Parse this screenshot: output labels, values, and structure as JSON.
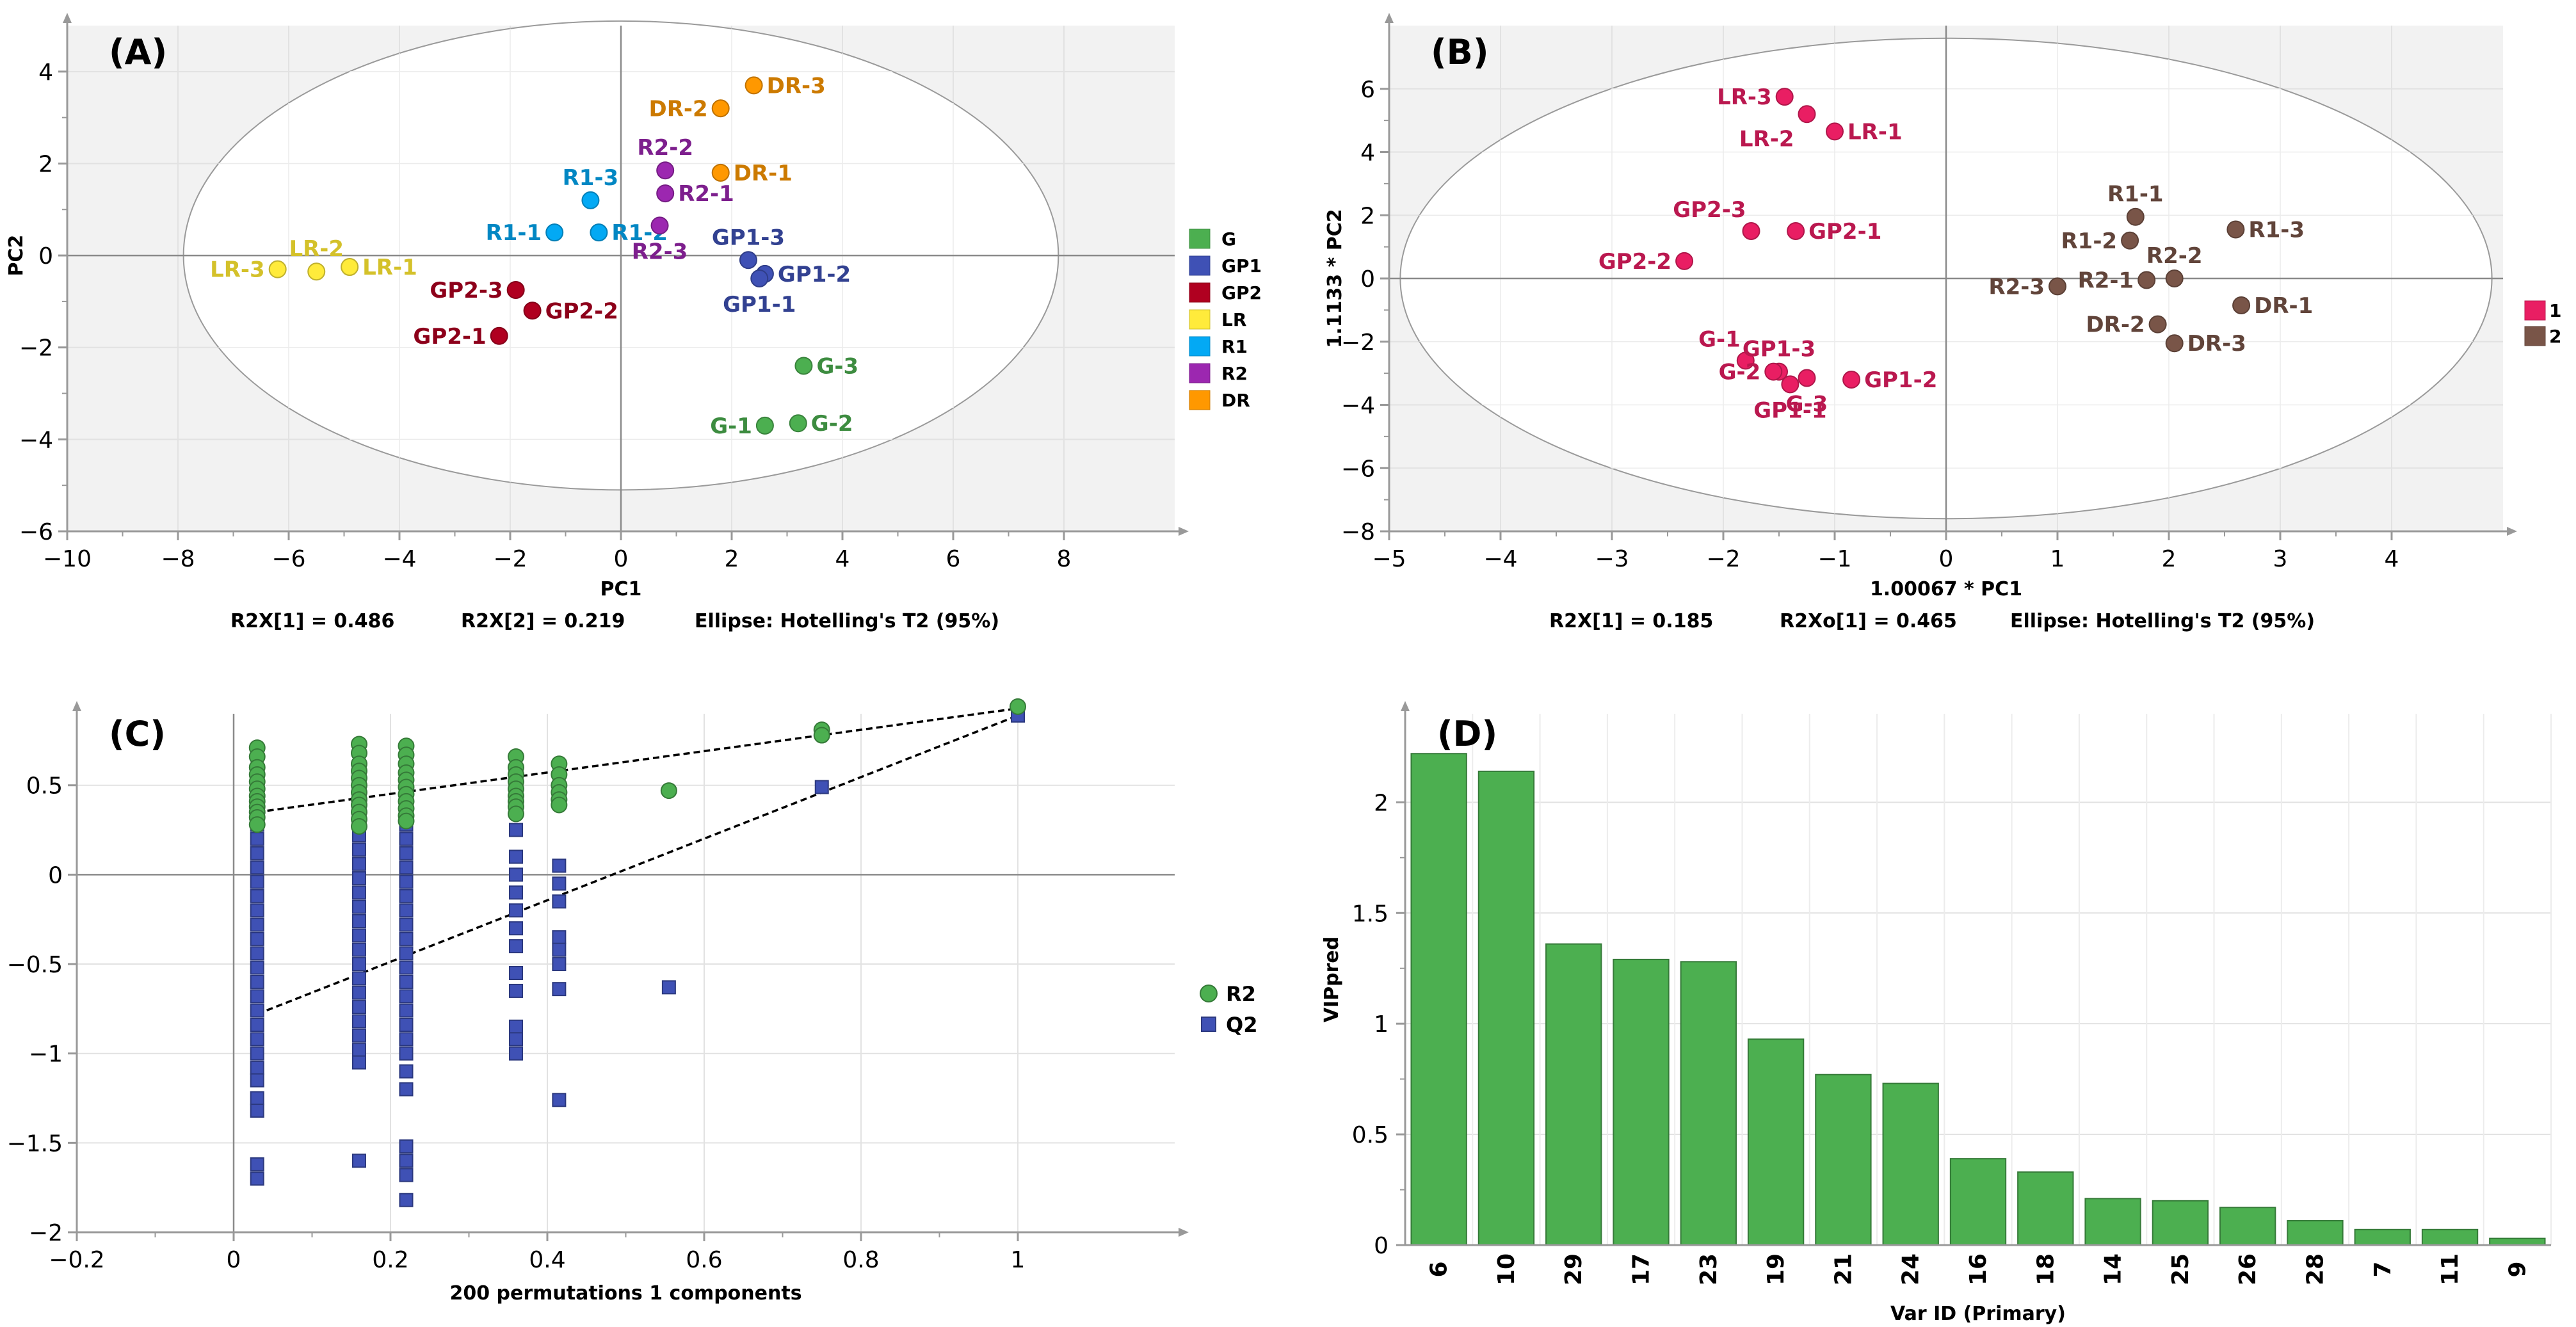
{
  "chart_data": [
    {
      "panel": "(A)",
      "type": "scatter",
      "xlabel": "PC1",
      "ylabel": "PC2",
      "xlim": [
        -10,
        10
      ],
      "ylim": [
        -6,
        5
      ],
      "xticks": [
        -10,
        -8,
        -6,
        -4,
        -2,
        0,
        2,
        4,
        6,
        8
      ],
      "yticks": [
        -6,
        -4,
        -2,
        0,
        2,
        4
      ],
      "ellipse": {
        "rx": 7.9,
        "ry": 5.1
      },
      "footer": [
        "R2X[1] = 0.486",
        "R2X[2] = 0.219",
        "Ellipse: Hotelling's T2 (95%)"
      ],
      "legend": [
        {
          "name": "G",
          "color": "#4caf50"
        },
        {
          "name": "GP1",
          "color": "#3f51b5"
        },
        {
          "name": "GP2",
          "color": "#b00020"
        },
        {
          "name": "LR",
          "color": "#ffeb3b"
        },
        {
          "name": "R1",
          "color": "#03a9f4"
        },
        {
          "name": "R2",
          "color": "#9c27b0"
        },
        {
          "name": "DR",
          "color": "#ff9800"
        }
      ],
      "points": [
        {
          "label": "LR-3",
          "x": -6.2,
          "y": -0.3,
          "group": "LR",
          "pos": "left"
        },
        {
          "label": "LR-2",
          "x": -5.5,
          "y": -0.35,
          "group": "LR",
          "pos": "above"
        },
        {
          "label": "LR-1",
          "x": -4.9,
          "y": -0.25,
          "group": "LR",
          "pos": "right"
        },
        {
          "label": "R1-1",
          "x": -1.2,
          "y": 0.5,
          "group": "R1",
          "pos": "left"
        },
        {
          "label": "R1-2",
          "x": -0.4,
          "y": 0.5,
          "group": "R1",
          "pos": "rightlow"
        },
        {
          "label": "R1-3",
          "x": -0.55,
          "y": 1.2,
          "group": "R1",
          "pos": "above"
        },
        {
          "label": "R2-2",
          "x": 0.8,
          "y": 1.85,
          "group": "R2",
          "pos": "above"
        },
        {
          "label": "R2-1",
          "x": 0.8,
          "y": 1.35,
          "group": "R2",
          "pos": "right"
        },
        {
          "label": "R2-3",
          "x": 0.7,
          "y": 0.65,
          "group": "R2",
          "pos": "below"
        },
        {
          "label": "DR-2",
          "x": 1.8,
          "y": 3.2,
          "group": "DR",
          "pos": "left"
        },
        {
          "label": "DR-3",
          "x": 2.4,
          "y": 3.7,
          "group": "DR",
          "pos": "right"
        },
        {
          "label": "DR-1",
          "x": 1.8,
          "y": 1.8,
          "group": "DR",
          "pos": "right"
        },
        {
          "label": "GP2-3",
          "x": -1.9,
          "y": -0.75,
          "group": "GP2",
          "pos": "left"
        },
        {
          "label": "GP2-2",
          "x": -1.6,
          "y": -1.2,
          "group": "GP2",
          "pos": "right"
        },
        {
          "label": "GP2-1",
          "x": -2.2,
          "y": -1.75,
          "group": "GP2",
          "pos": "left"
        },
        {
          "label": "GP1-3",
          "x": 2.3,
          "y": -0.1,
          "group": "GP1",
          "pos": "above"
        },
        {
          "label": "GP1-2",
          "x": 2.6,
          "y": -0.4,
          "group": "GP1",
          "pos": "right"
        },
        {
          "label": "GP1-1",
          "x": 2.5,
          "y": -0.5,
          "group": "GP1",
          "pos": "below"
        },
        {
          "label": "G-3",
          "x": 3.3,
          "y": -2.4,
          "group": "G",
          "pos": "right"
        },
        {
          "label": "G-1",
          "x": 2.6,
          "y": -3.7,
          "group": "G",
          "pos": "left"
        },
        {
          "label": "G-2",
          "x": 3.2,
          "y": -3.65,
          "group": "G",
          "pos": "right"
        }
      ]
    },
    {
      "panel": "(B)",
      "type": "scatter",
      "xlabel": "1.00067 * PC1",
      "ylabel": "1.1133 * PC2",
      "xlim": [
        -5,
        5
      ],
      "ylim": [
        -8,
        8
      ],
      "xticks": [
        -5,
        -4,
        -3,
        -2,
        -1,
        0,
        1,
        2,
        3,
        4
      ],
      "yticks": [
        -8,
        -6,
        -4,
        -2,
        0,
        2,
        4,
        6
      ],
      "ellipse": {
        "rx": 4.9,
        "ry": 7.6
      },
      "footer": [
        "R2X[1] = 0.185",
        "R2Xo[1] = 0.465",
        "Ellipse: Hotelling's T2 (95%)"
      ],
      "legend": [
        {
          "name": "1",
          "color": "#e91e63"
        },
        {
          "name": "2",
          "color": "#795548"
        }
      ],
      "points": [
        {
          "label": "LR-3",
          "x": -1.45,
          "y": 5.75,
          "group": "1",
          "pos": "left"
        },
        {
          "label": "LR-2",
          "x": -1.25,
          "y": 5.2,
          "group": "1",
          "pos": "belowleft"
        },
        {
          "label": "LR-1",
          "x": -1.0,
          "y": 4.65,
          "group": "1",
          "pos": "right"
        },
        {
          "label": "GP2-3",
          "x": -1.75,
          "y": 1.5,
          "group": "1",
          "pos": "aboveleft"
        },
        {
          "label": "GP2-1",
          "x": -1.35,
          "y": 1.5,
          "group": "1",
          "pos": "right"
        },
        {
          "label": "GP2-2",
          "x": -2.35,
          "y": 0.55,
          "group": "1",
          "pos": "left"
        },
        {
          "label": "G-1",
          "x": -1.8,
          "y": -2.6,
          "group": "1",
          "pos": "aboveleft"
        },
        {
          "label": "GP1-3",
          "x": -1.5,
          "y": -2.95,
          "group": "1",
          "pos": "above"
        },
        {
          "label": "G-2",
          "x": -1.55,
          "y": -2.95,
          "group": "1",
          "pos": "left"
        },
        {
          "label": "GP1-1",
          "x": -1.4,
          "y": -3.35,
          "group": "1",
          "pos": "below"
        },
        {
          "label": "G-3",
          "x": -1.25,
          "y": -3.15,
          "group": "1",
          "pos": "below"
        },
        {
          "label": "GP1-2",
          "x": -0.85,
          "y": -3.2,
          "group": "1",
          "pos": "right"
        },
        {
          "label": "R1-1",
          "x": 1.7,
          "y": 1.95,
          "group": "2",
          "pos": "above"
        },
        {
          "label": "R1-3",
          "x": 2.6,
          "y": 1.55,
          "group": "2",
          "pos": "right"
        },
        {
          "label": "R1-2",
          "x": 1.65,
          "y": 1.2,
          "group": "2",
          "pos": "left"
        },
        {
          "label": "R2-2",
          "x": 2.05,
          "y": 0.0,
          "group": "2",
          "pos": "above"
        },
        {
          "label": "R2-1",
          "x": 1.8,
          "y": -0.05,
          "group": "2",
          "pos": "left"
        },
        {
          "label": "R2-3",
          "x": 1.0,
          "y": -0.25,
          "group": "2",
          "pos": "left"
        },
        {
          "label": "DR-1",
          "x": 2.65,
          "y": -0.85,
          "group": "2",
          "pos": "right"
        },
        {
          "label": "DR-2",
          "x": 1.9,
          "y": -1.45,
          "group": "2",
          "pos": "left"
        },
        {
          "label": "DR-3",
          "x": 2.05,
          "y": -2.05,
          "group": "2",
          "pos": "right"
        }
      ]
    },
    {
      "panel": "(C)",
      "type": "scatter",
      "xlabel": "200 permutations 1 components",
      "xlim": [
        -0.2,
        1.2
      ],
      "ylim": [
        -2,
        0.9
      ],
      "xticks": [
        -0.2,
        0,
        0.2,
        0.4,
        0.6,
        0.8,
        1
      ],
      "yticks": [
        -2,
        -1.5,
        -1,
        -0.5,
        0,
        0.5
      ],
      "series": [
        {
          "name": "R2",
          "color": "#4caf50",
          "marker": "circle",
          "intercept": 0.35,
          "slope": 0.58,
          "x_groups": [
            0.03,
            0.16,
            0.22,
            0.36,
            0.415,
            0.555,
            0.75,
            1.0
          ],
          "y_groups": [
            [
              0.71,
              0.66,
              0.6,
              0.56,
              0.52,
              0.48,
              0.44,
              0.41,
              0.38,
              0.35,
              0.32,
              0.28
            ],
            [
              0.73,
              0.68,
              0.62,
              0.58,
              0.54,
              0.5,
              0.46,
              0.42,
              0.39,
              0.35,
              0.31,
              0.27
            ],
            [
              0.72,
              0.67,
              0.62,
              0.57,
              0.53,
              0.49,
              0.45,
              0.41,
              0.37,
              0.33,
              0.3
            ],
            [
              0.66,
              0.6,
              0.56,
              0.52,
              0.48,
              0.44,
              0.41,
              0.38,
              0.34
            ],
            [
              0.62,
              0.56,
              0.5,
              0.46,
              0.42,
              0.39
            ],
            [
              0.47
            ],
            [
              0.81,
              0.78
            ],
            [
              0.94
            ]
          ]
        },
        {
          "name": "Q2",
          "color": "#3f51b5",
          "marker": "square",
          "intercept": -0.78,
          "slope": 1.67,
          "x_groups": [
            0.03,
            0.16,
            0.22,
            0.36,
            0.415,
            0.555,
            0.75,
            1.0
          ],
          "y_groups": [
            [
              0.28,
              0.2,
              0.12,
              0.04,
              -0.04,
              -0.12,
              -0.2,
              -0.28,
              -0.36,
              -0.44,
              -0.52,
              -0.6,
              -0.68,
              -0.76,
              -0.84,
              -0.92,
              -1.0,
              -1.08,
              -1.15,
              -1.25,
              -1.32,
              -1.62,
              -1.7
            ],
            [
              0.3,
              0.22,
              0.14,
              0.06,
              -0.02,
              -0.1,
              -0.18,
              -0.26,
              -0.34,
              -0.42,
              -0.5,
              -0.58,
              -0.66,
              -0.74,
              -0.82,
              -0.9,
              -0.98,
              -1.05,
              -1.6
            ],
            [
              0.28,
              0.2,
              0.12,
              0.04,
              -0.04,
              -0.12,
              -0.2,
              -0.28,
              -0.36,
              -0.44,
              -0.52,
              -0.6,
              -0.68,
              -0.76,
              -0.84,
              -0.92,
              -1.0,
              -1.1,
              -1.2,
              -1.52,
              -1.6,
              -1.68,
              -1.82
            ],
            [
              0.25,
              0.1,
              0.0,
              -0.1,
              -0.2,
              -0.3,
              -0.4,
              -0.55,
              -0.65,
              -0.85,
              -0.92,
              -1.0
            ],
            [
              0.05,
              -0.05,
              -0.15,
              -0.35,
              -0.42,
              -0.5,
              -0.64,
              -1.26
            ],
            [
              -0.63
            ],
            [
              0.49
            ],
            [
              0.89
            ]
          ]
        }
      ],
      "legend": [
        {
          "name": "R2",
          "color": "#4caf50"
        },
        {
          "name": "Q2",
          "color": "#3f51b5"
        }
      ]
    },
    {
      "panel": "(D)",
      "type": "bar",
      "xlabel": "Var ID (Primary)",
      "ylabel": "VIPpred",
      "ylim": [
        0,
        2.4
      ],
      "yticks": [
        0,
        0.5,
        1,
        1.5,
        2
      ],
      "ytick_labels": [
        "0",
        "0.5",
        "1",
        "1.5",
        "2"
      ],
      "color": "#4caf50",
      "categories": [
        "6",
        "10",
        "29",
        "17",
        "23",
        "19",
        "21",
        "24",
        "16",
        "18",
        "14",
        "25",
        "26",
        "28",
        "7",
        "11",
        "9"
      ],
      "values": [
        2.22,
        2.14,
        1.36,
        1.29,
        1.28,
        0.93,
        0.77,
        0.73,
        0.39,
        0.33,
        0.21,
        0.2,
        0.17,
        0.11,
        0.07,
        0.07,
        0.03
      ]
    }
  ]
}
